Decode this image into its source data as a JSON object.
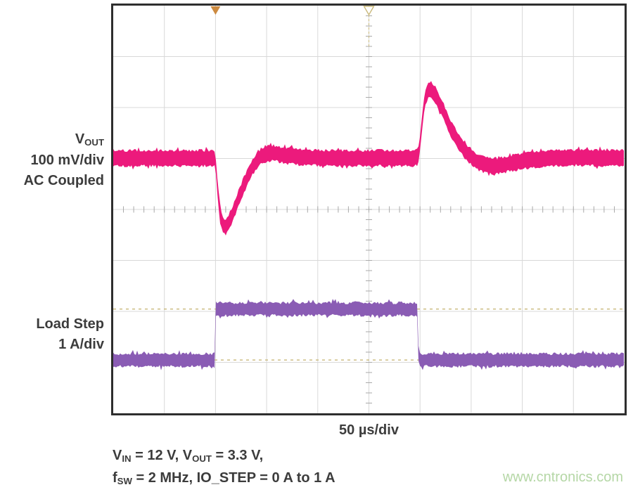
{
  "labels": {
    "vout": {
      "line1_rich": [
        {
          "t": "V"
        },
        {
          "s": "OUT"
        }
      ],
      "line2": "100 mV/div",
      "line3": "AC Coupled"
    },
    "load": {
      "line1": "Load Step",
      "line2": "1 A/div"
    },
    "timebase": "50 µs/div"
  },
  "annotations": {
    "line1_rich": [
      {
        "t": "V"
      },
      {
        "s": "IN"
      },
      {
        "t": " = 12 V, V"
      },
      {
        "s": "OUT"
      },
      {
        "t": " = 3.3 V,"
      }
    ],
    "line2_rich": [
      {
        "t": "f"
      },
      {
        "s": "SW"
      },
      {
        "t": " = 2 MHz, IO_STEP = 0 A to 1 A"
      }
    ]
  },
  "watermark": {
    "text": "www.cntronics.com",
    "color": "#b5d7a6"
  },
  "plot": {
    "border_color": "#2e2e2e",
    "grid_color": "#d8d8d8",
    "tick_color": "#a9a9a9",
    "ref_line_color": "#c9b87a",
    "marker_fill_color": "#cc8a40",
    "marker_hollow_color": "#c9b87a",
    "x_divisions": 10,
    "y_divisions": 8
  },
  "chart_data": {
    "type": "line",
    "x_axis": {
      "label": "50 µs/div",
      "us_per_div": 50,
      "total_us": 500,
      "divisions": 10
    },
    "y_divisions": 8,
    "grid": true,
    "series": [
      {
        "name": "Load Step",
        "scale": "1 A/div",
        "unit": "A",
        "per_div": 1,
        "zero_div_from_top": 6.955,
        "color": "#8a5cb4",
        "points": [
          [
            0,
            0
          ],
          [
            99.5,
            0
          ],
          [
            99.6,
            1
          ],
          [
            298.4,
            1
          ],
          [
            298.5,
            0
          ],
          [
            500,
            0
          ]
        ]
      },
      {
        "name": "VOUT",
        "scale": "100 mV/div",
        "coupling": "AC Coupled",
        "unit": "mV",
        "per_div": 100,
        "zero_div_from_top": 2.993,
        "color": "#ec1a7c",
        "points": [
          [
            0,
            0
          ],
          [
            99,
            0
          ],
          [
            100,
            -5
          ],
          [
            101,
            -35
          ],
          [
            102.5,
            -70
          ],
          [
            104,
            -100
          ],
          [
            105.5,
            -118
          ],
          [
            107,
            -129
          ],
          [
            109,
            -135
          ],
          [
            111,
            -133
          ],
          [
            113.5,
            -124
          ],
          [
            117,
            -108
          ],
          [
            121,
            -87
          ],
          [
            126,
            -61
          ],
          [
            131,
            -38
          ],
          [
            136,
            -18
          ],
          [
            141,
            -3
          ],
          [
            146,
            6
          ],
          [
            151,
            10
          ],
          [
            157,
            10
          ],
          [
            164,
            7
          ],
          [
            172,
            4
          ],
          [
            182,
            2
          ],
          [
            195,
            1
          ],
          [
            210,
            0
          ],
          [
            295,
            0
          ],
          [
            298,
            3
          ],
          [
            300,
            30
          ],
          [
            302,
            72
          ],
          [
            304,
            105
          ],
          [
            306,
            124
          ],
          [
            308,
            132
          ],
          [
            310,
            134
          ],
          [
            313,
            130
          ],
          [
            316,
            121
          ],
          [
            320,
            104
          ],
          [
            325,
            81
          ],
          [
            330,
            58
          ],
          [
            336,
            37
          ],
          [
            342,
            19
          ],
          [
            348,
            6
          ],
          [
            354,
            -4
          ],
          [
            360,
            -11
          ],
          [
            367,
            -15
          ],
          [
            374,
            -16
          ],
          [
            382,
            -13
          ],
          [
            391,
            -9
          ],
          [
            402,
            -5
          ],
          [
            415,
            -2
          ],
          [
            430,
            0
          ],
          [
            448,
            1
          ],
          [
            465,
            1
          ],
          [
            480,
            0
          ],
          [
            500,
            0
          ]
        ]
      }
    ],
    "reference_levels_a": [
      1,
      0
    ],
    "markers": [
      {
        "style": "filled-triangle",
        "t_us": 100
      },
      {
        "style": "hollow-triangle",
        "t_us": 250
      }
    ]
  }
}
